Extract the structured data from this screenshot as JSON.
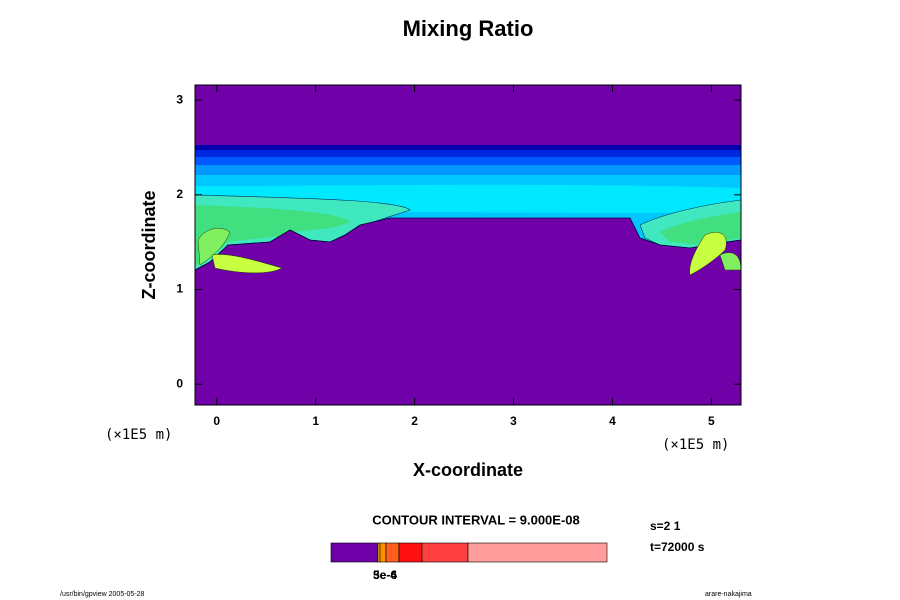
{
  "chart_data": {
    "type": "contour",
    "title": "Mixing Ratio",
    "x_label": "X-coordinate",
    "y_label": "Z-coordinate",
    "x_unit": "(×1E5 m)",
    "y_unit": "(×1E5 m)",
    "xlim": [
      -0.22,
      5.3
    ],
    "ylim": [
      -0.22,
      3.16
    ],
    "xticks": [
      0,
      1,
      2,
      3,
      4,
      5
    ],
    "yticks": [
      0,
      1,
      2,
      3
    ],
    "contour_interval": "CONTOUR INTERVAL = 9.000E-08",
    "field_colors": [
      "#7000a8",
      "#0000b0",
      "#0028e0",
      "#0058ff",
      "#0098ff",
      "#00c8ff",
      "#00e8ff",
      "#40e8c0",
      "#40e080",
      "#80f060",
      "#c8ff40"
    ],
    "colorbar": {
      "colors": [
        "#7000a8",
        "#f0d000",
        "#ff9000",
        "#ff6020",
        "#ff1010",
        "#ff4040",
        "#ff9c9c"
      ],
      "labels": [
        "3e-6",
        "5e-4"
      ]
    }
  },
  "annotations": {
    "step": "s=2 1",
    "time": "t=72000 s",
    "footer_left": "/usr/bin/gpview 2005-05-28",
    "footer_right": "arare-nakajima"
  }
}
